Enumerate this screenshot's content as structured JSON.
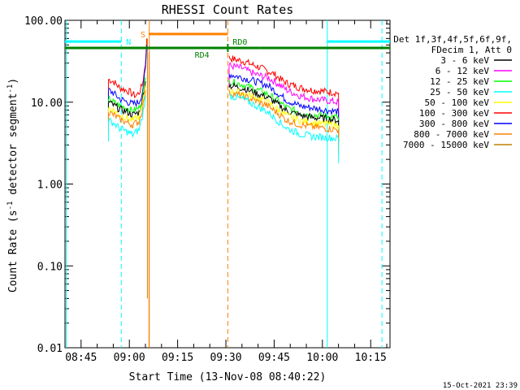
{
  "chart_data": {
    "type": "line",
    "title": "RHESSI Count Rates",
    "xlabel": "Start Time (13-Nov-08 08:40:22)",
    "ylabel_parts": [
      "Count Rate (s",
      "-1",
      " detector segment",
      "-1",
      ")"
    ],
    "yscale": "log",
    "ylim": [
      0.01,
      100
    ],
    "xlim_minutes": [
      -3,
      98
    ],
    "x_origin": "08:43:00",
    "y_ticks": [
      {
        "value": 100,
        "label": "100.00"
      },
      {
        "value": 10,
        "label": "10.00"
      },
      {
        "value": 1,
        "label": "1.00"
      },
      {
        "value": 0.1,
        "label": "0.10"
      },
      {
        "value": 0.01,
        "label": "0.01"
      }
    ],
    "x_ticks": [
      {
        "minute": 2,
        "label": "08:45"
      },
      {
        "minute": 17,
        "label": "09:00"
      },
      {
        "minute": 32,
        "label": "09:15"
      },
      {
        "minute": 47,
        "label": "09:30"
      },
      {
        "minute": 62,
        "label": "09:45"
      },
      {
        "minute": 77,
        "label": "10:00"
      },
      {
        "minute": 92,
        "label": "10:15"
      }
    ],
    "legend": {
      "position": "right",
      "header": [
        "Det 1f,3f,4f,5f,6f,9f,",
        "FDecim 1, Att 0"
      ],
      "entries": [
        {
          "label": "3 - 6 keV",
          "color": "#000000"
        },
        {
          "label": "6 - 12 keV",
          "color": "#ff00ff"
        },
        {
          "label": "12 - 25 keV",
          "color": "#00ff00"
        },
        {
          "label": "25 - 50 keV",
          "color": "#00ffff"
        },
        {
          "label": "50 - 100 keV",
          "color": "#ffff00"
        },
        {
          "label": "100 - 300 keV",
          "color": "#ff0000"
        },
        {
          "label": "300 - 800 keV",
          "color": "#0000ff"
        },
        {
          "label": "800 - 7000 keV",
          "color": "#ff8000"
        },
        {
          "label": "7000 - 15000 keV",
          "color": "#c08000"
        }
      ]
    },
    "series": [
      {
        "name": "100 - 300 keV",
        "color": "#ff0000",
        "segments": [
          [
            [
              10.5,
              19
            ],
            [
              12,
              18
            ],
            [
              14,
              15
            ],
            [
              16,
              14
            ],
            [
              17,
              13.5
            ],
            [
              18,
              12.5
            ],
            [
              19,
              12
            ],
            [
              20,
              13
            ],
            [
              21,
              16
            ],
            [
              22,
              30
            ],
            [
              22.4,
              60
            ]
          ],
          [
            [
              48,
              35
            ],
            [
              50,
              33
            ],
            [
              52,
              32
            ],
            [
              54,
              30
            ],
            [
              56,
              28
            ],
            [
              58,
              26
            ],
            [
              60,
              24
            ],
            [
              62,
              22
            ],
            [
              64,
              19
            ],
            [
              66,
              17
            ],
            [
              68,
              16
            ],
            [
              70,
              15
            ],
            [
              72,
              14.5
            ],
            [
              74,
              14
            ],
            [
              76,
              13.8
            ],
            [
              78,
              13.5
            ],
            [
              80,
              13.2
            ],
            [
              82,
              13
            ]
          ]
        ]
      },
      {
        "name": "6 - 12 keV",
        "color": "#ff00ff",
        "segments": [
          [
            [
              48,
              28
            ],
            [
              52,
              26
            ],
            [
              56,
              22
            ],
            [
              60,
              20
            ],
            [
              63,
              17
            ],
            [
              66,
              14
            ],
            [
              70,
              12
            ],
            [
              74,
              11
            ],
            [
              78,
              10.5
            ],
            [
              82,
              10
            ]
          ]
        ]
      },
      {
        "name": "300 - 800 keV",
        "color": "#0000ff",
        "segments": [
          [
            [
              10.5,
              14
            ],
            [
              12,
              13
            ],
            [
              14,
              11
            ],
            [
              16,
              10.2
            ],
            [
              18,
              9.5
            ],
            [
              20,
              10
            ],
            [
              21,
              13
            ],
            [
              22,
              25
            ],
            [
              22.4,
              50
            ]
          ],
          [
            [
              48,
              22
            ],
            [
              52,
              20
            ],
            [
              56,
              18
            ],
            [
              60,
              16
            ],
            [
              63,
              13
            ],
            [
              66,
              10.5
            ],
            [
              70,
              9
            ],
            [
              74,
              8.5
            ],
            [
              78,
              8
            ],
            [
              82,
              7.6
            ]
          ]
        ]
      },
      {
        "name": "12 - 25 keV",
        "color": "#00ff00",
        "segments": [
          [
            [
              10.5,
              11
            ],
            [
              12,
              10
            ],
            [
              14,
              9
            ],
            [
              16,
              8.5
            ],
            [
              18,
              7.8
            ],
            [
              20,
              8.5
            ],
            [
              21,
              11
            ],
            [
              22,
              20
            ]
          ],
          [
            [
              48,
              18
            ],
            [
              52,
              16.5
            ],
            [
              56,
              14.5
            ],
            [
              60,
              12.5
            ],
            [
              63,
              10.5
            ],
            [
              66,
              8.5
            ],
            [
              70,
              7.5
            ],
            [
              74,
              7
            ],
            [
              78,
              6.8
            ],
            [
              82,
              6.5
            ]
          ]
        ]
      },
      {
        "name": "3 - 6 keV",
        "color": "#000000",
        "segments": [
          [
            [
              10.5,
              10
            ],
            [
              12,
              9.2
            ],
            [
              14,
              8.2
            ],
            [
              16,
              7.7
            ],
            [
              18,
              7
            ],
            [
              20,
              7.5
            ],
            [
              21,
              10
            ],
            [
              22,
              18
            ]
          ],
          [
            [
              48,
              16
            ],
            [
              52,
              15
            ],
            [
              56,
              13
            ],
            [
              60,
              11.5
            ],
            [
              63,
              9.5
            ],
            [
              66,
              7.8
            ],
            [
              70,
              6.9
            ],
            [
              74,
              6.5
            ],
            [
              78,
              6.3
            ],
            [
              82,
              6
            ]
          ]
        ]
      },
      {
        "name": "50 - 100 keV",
        "color": "#ffff00",
        "segments": [
          [
            [
              10.5,
              8.5
            ],
            [
              12,
              8
            ],
            [
              14,
              7
            ],
            [
              16,
              6.5
            ],
            [
              18,
              6
            ],
            [
              20,
              6.6
            ],
            [
              21,
              9
            ],
            [
              22,
              16
            ]
          ],
          [
            [
              48,
              14
            ],
            [
              52,
              13
            ],
            [
              56,
              11.5
            ],
            [
              60,
              10
            ],
            [
              63,
              8.2
            ],
            [
              66,
              6.8
            ],
            [
              70,
              6
            ],
            [
              74,
              5.6
            ],
            [
              78,
              5.4
            ],
            [
              82,
              5.2
            ]
          ]
        ]
      },
      {
        "name": "800 - 7000 keV",
        "color": "#ff8000",
        "segments": [
          [
            [
              10.5,
              7.5
            ],
            [
              12,
              7
            ],
            [
              14,
              6.2
            ],
            [
              16,
              5.7
            ],
            [
              18,
              5.3
            ],
            [
              20,
              5.8
            ],
            [
              21,
              8
            ],
            [
              22,
              14
            ]
          ],
          [
            [
              48,
              13
            ],
            [
              52,
              12
            ],
            [
              56,
              10.5
            ],
            [
              60,
              9
            ],
            [
              63,
              7.4
            ],
            [
              66,
              6
            ],
            [
              70,
              5.3
            ],
            [
              74,
              5
            ],
            [
              78,
              4.8
            ],
            [
              82,
              4.6
            ]
          ]
        ]
      },
      {
        "name": "25 - 50 keV",
        "color": "#00ffff",
        "segments": [
          [
            [
              10.5,
              6
            ],
            [
              12,
              5.6
            ],
            [
              14,
              4.8
            ],
            [
              16,
              4.4
            ],
            [
              18,
              4
            ],
            [
              20,
              4.6
            ],
            [
              21,
              6.5
            ],
            [
              22,
              12
            ]
          ],
          [
            [
              48,
              12
            ],
            [
              52,
              11
            ],
            [
              56,
              9.2
            ],
            [
              60,
              7.6
            ],
            [
              63,
              6
            ],
            [
              66,
              4.8
            ],
            [
              70,
              4.1
            ],
            [
              74,
              3.8
            ],
            [
              78,
              3.7
            ],
            [
              82,
              3.6
            ]
          ]
        ]
      }
    ],
    "annotations": {
      "spike_minute": 22.6,
      "spike_min_value": 0.04,
      "orange_drop_minute": 23.1,
      "night_periods": [
        [
          -3,
          14.5
        ],
        [
          78.5,
          98
        ]
      ],
      "night_label": "N",
      "night_y": 55,
      "saa_period": [
        23,
        47.6
      ],
      "saa_label": "S",
      "saa_y": 68,
      "attenuator_bar_y": 46,
      "attenuator_segments": [
        {
          "from": -3,
          "to": 47.6
        },
        {
          "from": 47.6,
          "to": 57.5,
          "label": "RD0",
          "label_pos": "above"
        },
        {
          "from": 57.5,
          "to": 98,
          "label": "RD4",
          "label_pos": "below_left"
        }
      ],
      "vlines": [
        {
          "minute": 14.5,
          "color": "#00ffff",
          "dash": true
        },
        {
          "minute": 23.2,
          "color": "#ff8000",
          "dash": false
        },
        {
          "minute": 47.6,
          "color": "#ff8000",
          "dash": true
        },
        {
          "minute": 78.5,
          "color": "#00ffff",
          "dash": false
        },
        {
          "minute": 95.5,
          "color": "#00ffff",
          "dash": true
        },
        {
          "minute": -2.6,
          "color": "#00ffff",
          "dash": false
        }
      ]
    }
  },
  "footer": {
    "timestamp": "15-Oct-2021 23:39"
  }
}
